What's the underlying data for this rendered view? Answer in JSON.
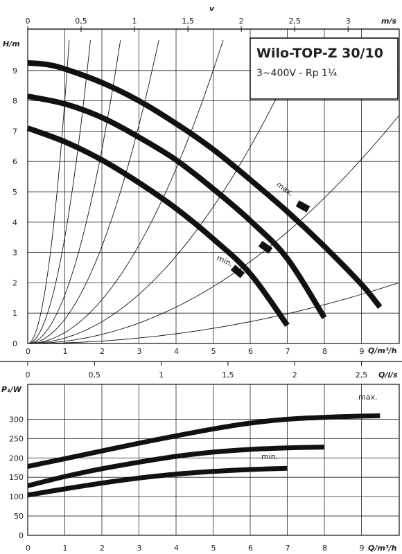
{
  "chart_data": [
    {
      "type": "line",
      "title": "Wilo-TOP-Z 30/10",
      "subtitle": "3~400V - Rp 1¼",
      "ylabel": "H/m",
      "xlabel": "Q/m³/h",
      "top_axis_label": "m/s",
      "top_axis_symbol": "v",
      "xlim": [
        0,
        10
      ],
      "ylim": [
        0,
        10
      ],
      "x_ticks": [
        0,
        1,
        2,
        3,
        4,
        5,
        6,
        7,
        8,
        9
      ],
      "y_ticks": [
        0,
        1,
        2,
        3,
        4,
        5,
        6,
        7,
        8,
        9
      ],
      "top_ticks": [
        {
          "label": "0",
          "q": 0
        },
        {
          "label": "0,5",
          "q": 1.44
        },
        {
          "label": "1",
          "q": 2.88
        },
        {
          "label": "1,5",
          "q": 4.32
        },
        {
          "label": "2",
          "q": 5.76
        },
        {
          "label": "2,5",
          "q": 7.2
        },
        {
          "label": "3",
          "q": 8.64
        }
      ],
      "series": [
        {
          "name": "max.",
          "x": [
            0,
            0.5,
            1,
            2,
            3,
            4,
            5,
            6,
            7,
            8,
            9,
            9.5
          ],
          "y": [
            9.25,
            9.2,
            9.05,
            8.6,
            8.0,
            7.25,
            6.4,
            5.4,
            4.35,
            3.2,
            1.95,
            1.2
          ]
        },
        {
          "name": "",
          "x": [
            0,
            1,
            2,
            3,
            4,
            5,
            6,
            7,
            8
          ],
          "y": [
            8.15,
            7.9,
            7.45,
            6.8,
            6.05,
            5.1,
            4.05,
            2.8,
            0.85
          ]
        },
        {
          "name": "min.",
          "x": [
            0,
            1,
            2,
            3,
            4,
            5,
            6,
            7
          ],
          "y": [
            7.1,
            6.65,
            6.05,
            5.3,
            4.45,
            3.45,
            2.3,
            0.6
          ]
        }
      ],
      "system_curve_k": [
        8.0,
        3.5,
        1.6,
        0.8,
        0.36,
        0.18,
        0.075,
        0.02
      ]
    },
    {
      "type": "line",
      "ylabel": "P₁/W",
      "xlabel": "Q/m³/h",
      "top_axis_label": "Q/l/s",
      "xlim": [
        0,
        10
      ],
      "ylim": [
        0,
        325
      ],
      "x_ticks": [
        0,
        1,
        2,
        3,
        4,
        5,
        6,
        7,
        8,
        9
      ],
      "y_ticks": [
        0,
        50,
        100,
        150,
        200,
        250,
        300
      ],
      "top_ticks": [
        {
          "label": "0",
          "q": 0
        },
        {
          "label": "0,5",
          "q": 1.8
        },
        {
          "label": "1",
          "q": 3.6
        },
        {
          "label": "1,5",
          "q": 5.4
        },
        {
          "label": "2",
          "q": 7.2
        },
        {
          "label": "2,5",
          "q": 9.0
        }
      ],
      "series": [
        {
          "name": "max.",
          "x": [
            0,
            1,
            2,
            3,
            4,
            5,
            6,
            7,
            8,
            9,
            9.5
          ],
          "y": [
            178,
            198,
            218,
            238,
            257,
            275,
            290,
            300,
            305,
            308,
            309
          ]
        },
        {
          "name": "",
          "x": [
            0,
            1,
            2,
            3,
            4,
            5,
            6,
            7,
            8
          ],
          "y": [
            128,
            152,
            172,
            189,
            204,
            215,
            222,
            226,
            228
          ]
        },
        {
          "name": "min.",
          "x": [
            0,
            1,
            2,
            3,
            4,
            5,
            6,
            7
          ],
          "y": [
            104,
            120,
            135,
            148,
            158,
            165,
            170,
            173
          ]
        }
      ]
    }
  ]
}
